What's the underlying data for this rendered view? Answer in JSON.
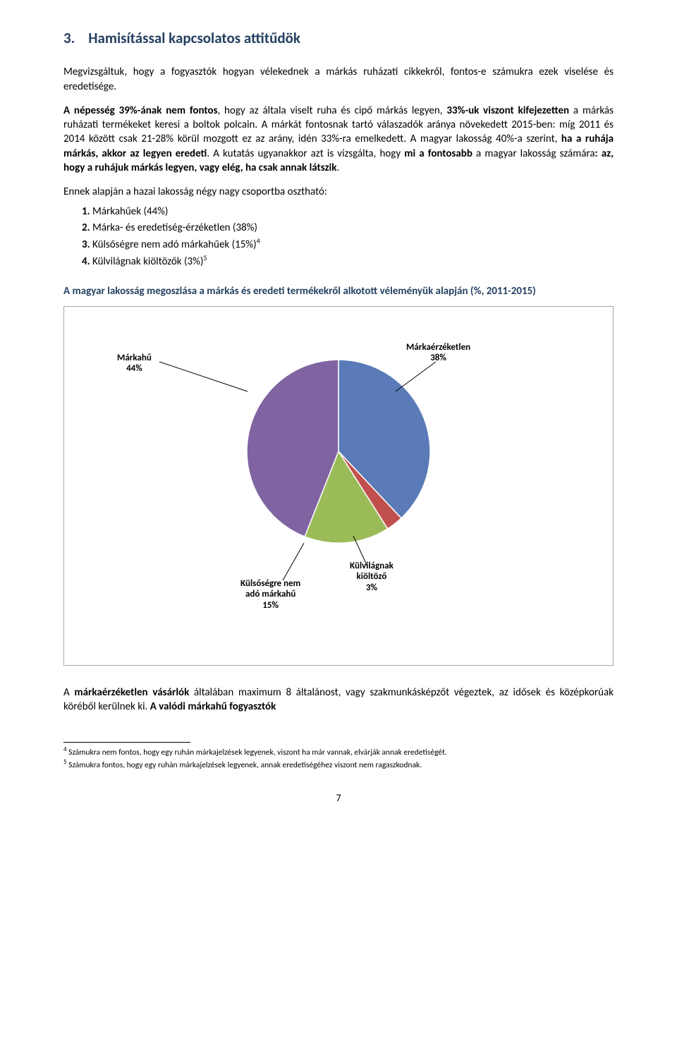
{
  "section": {
    "number": "3.",
    "title": "Hamisítással kapcsolatos attitűdök"
  },
  "p1_a": "Megvizsgáltuk, hogy a fogyasztók hogyan vélekednek a márkás ruházati cikkekről, fontos-e számukra ezek viselése és eredetisége.",
  "p2_bold_a": "A népesség 39%-ának nem fontos",
  "p2_a": ", hogy az általa viselt ruha és cipő márkás legyen, ",
  "p2_bold_b": "33%-uk viszont kifejezetten",
  "p2_b": " a márkás ruházati termékeket keresi a boltok polcain. A márkát fontosnak tartó válaszadók aránya növekedett 2015-ben: míg 2011 és 2014 között csak 21-28% körül mozgott ez az arány, idén 33%-ra emelkedett. A magyar lakosság 40%-a szerint, ",
  "p2_bold_c": "ha a ruhája márkás, akkor az legyen eredeti",
  "p2_c": ". A kutatás ugyanakkor azt is vizsgálta, hogy ",
  "p2_bold_d": "mi a fontosabb",
  "p2_d": " a magyar lakosság számára",
  "p2_bold_e": ": az, hogy a ruhájuk márkás legyen, vagy elég, ha csak annak látszik",
  "p2_e": ".",
  "intro_list": "Ennek alapján a hazai lakosság négy nagy csoportba osztható:",
  "list": {
    "i1_num": "1.",
    "i1": "Márkahűek (44%)",
    "i2_num": "2.",
    "i2": "Márka- és eredetiség-érzéketlen (38%)",
    "i3_num": "3.",
    "i3": "Külsőségre nem adó márkahűek (15%)",
    "i3_sup": "4",
    "i4_num": "4.",
    "i4": "Külvilágnak kiöltözők (3%)",
    "i4_sup": "5"
  },
  "subtitle": "A magyar lakosság megoszlása a márkás és eredeti termékekről alkotott véleményük alapján (%, 2011-2015)",
  "chart": {
    "type": "pie",
    "background_color": "#ffffff",
    "border_color": "#a6a6a6",
    "label_fontsize": 13,
    "label_fontweight": "bold",
    "slices": [
      {
        "label_lines": [
          "Márkaérzéketlen",
          "38%"
        ],
        "value": 38,
        "color": "#5a7bb8"
      },
      {
        "label_lines": [
          "Külvilágnak",
          "kiöltöző",
          "3%"
        ],
        "value": 3,
        "color": "#c0504d"
      },
      {
        "label_lines": [
          "Külsőségre nem",
          "adó márkahű",
          "15%"
        ],
        "value": 15,
        "color": "#9bbb59"
      },
      {
        "label_lines": [
          "Márkahű",
          "44%"
        ],
        "value": 44,
        "color": "#8064a2"
      }
    ]
  },
  "p_after_chart_a": "A ",
  "p_after_chart_bold": "márkaérzéketlen vásárlók",
  "p_after_chart_b": " általában maximum 8 általánost, vagy szakmunkásképzőt végeztek, az idősek és középkorúak köréből kerülnek ki. ",
  "p_after_chart_bold2": "A valódi márkahű fogyasztók",
  "footnotes": {
    "f4_sup": "4",
    "f4": " Számukra nem fontos, hogy egy ruhán márkajelzések legyenek, viszont ha már vannak, elvárják annak eredetiségét.",
    "f5_sup": "5",
    "f5": " Számukra fontos, hogy egy ruhán márkajelzések legyenek, annak eredetiségéhez viszont nem ragaszkodnak."
  },
  "page_number": "7"
}
